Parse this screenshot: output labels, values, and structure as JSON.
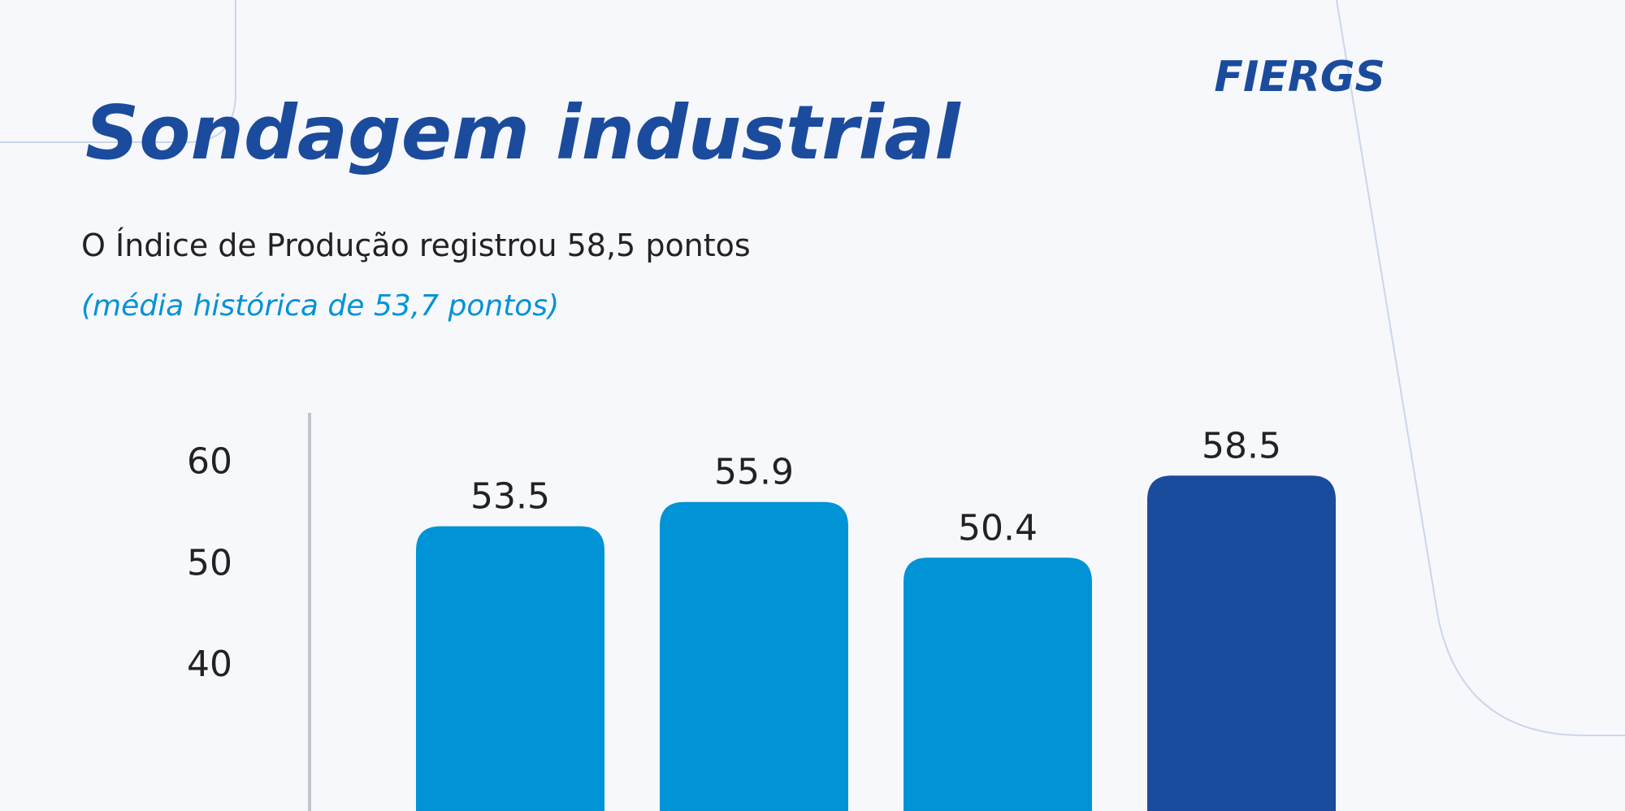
{
  "chart_data": {
    "type": "bar",
    "title": "Sondagem industrial",
    "subtitle": "O Índice de Produção registrou 58,5 pontos",
    "note": "(média histórica de 53,7 pontos)",
    "logo": "FIERGS",
    "categories": [
      null,
      null,
      null,
      null
    ],
    "values": [
      53.5,
      55.9,
      50.4,
      58.5
    ],
    "colors": [
      "#0093d6",
      "#0093d6",
      "#0093d6",
      "#1b4b9c"
    ],
    "ylim": [
      25.4,
      64.7
    ],
    "yticks": [
      40,
      50,
      60
    ]
  }
}
